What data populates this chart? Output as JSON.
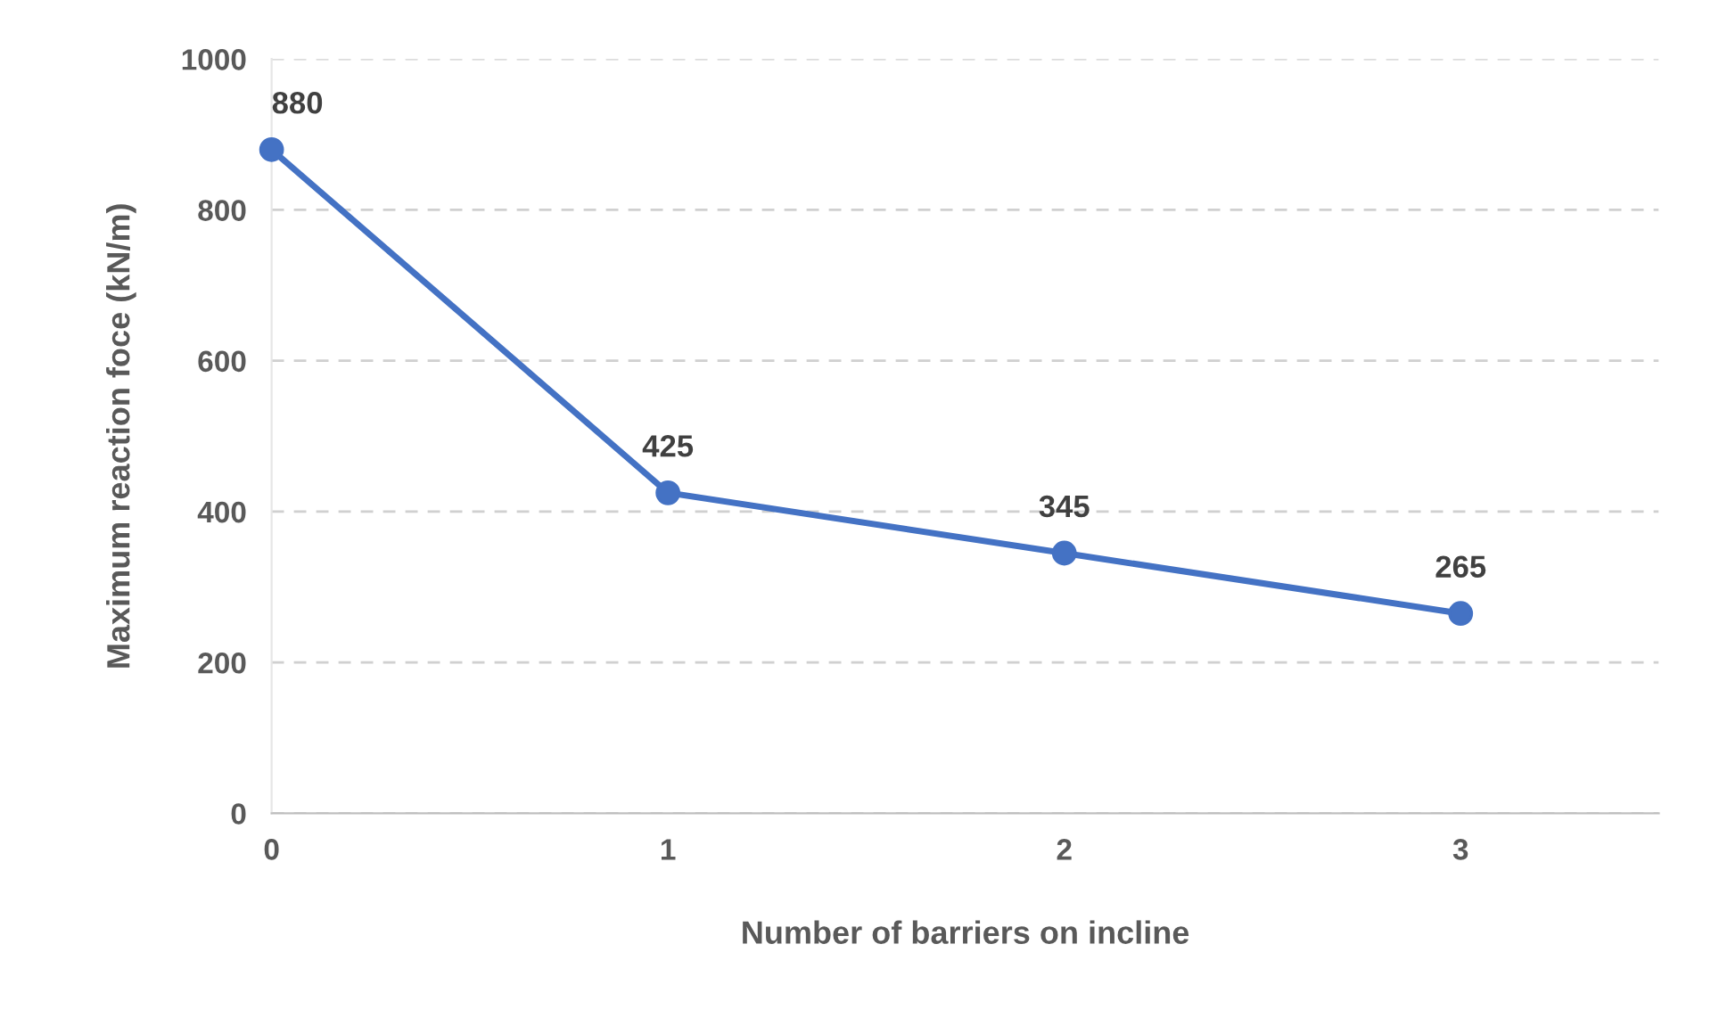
{
  "chart_data": {
    "type": "line",
    "xlabel": "Number of barriers on incline",
    "ylabel": "Maximum reaction foce (kN/m)",
    "x": [
      0,
      1,
      2,
      3
    ],
    "series": [
      {
        "color": "#4472c4",
        "values": [
          880,
          425,
          345,
          265
        ]
      }
    ],
    "xlim": [
      0,
      3.5
    ],
    "xticks": [
      0,
      1,
      2,
      3
    ],
    "ylim": [
      0,
      1000
    ],
    "yticks": [
      0,
      200,
      400,
      600,
      800,
      1000
    ],
    "grid": "y",
    "marker": "circle",
    "line_style": "solid",
    "data_labels": true,
    "legend": false
  }
}
